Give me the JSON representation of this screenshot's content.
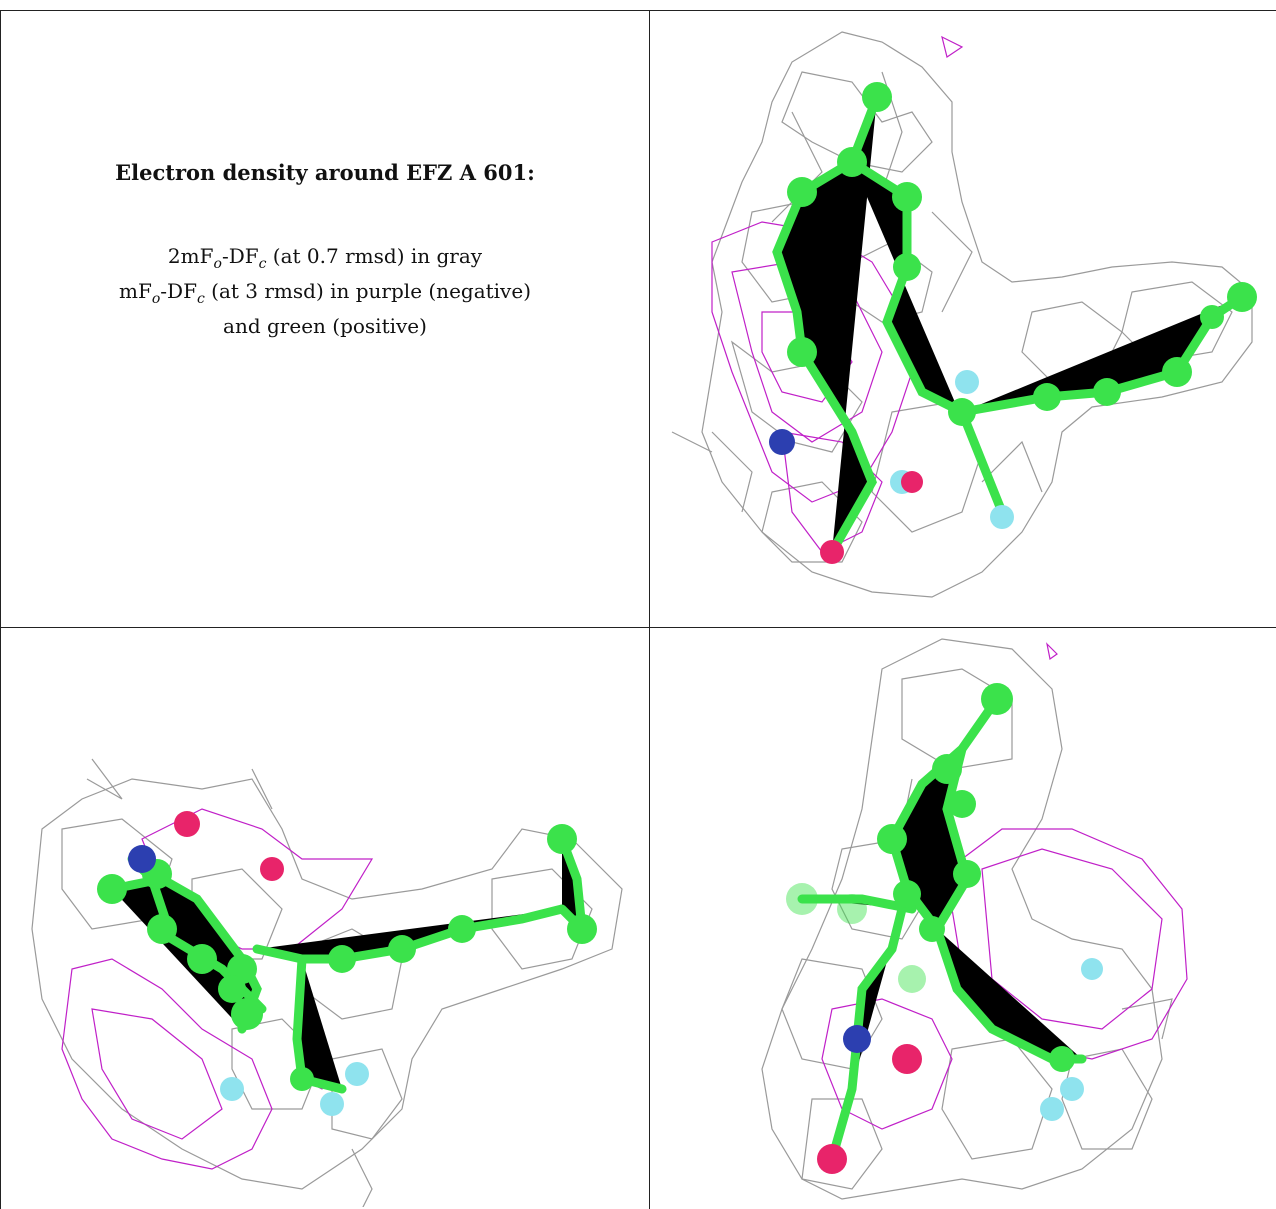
{
  "caption": {
    "title": "Electron density around EFZ A 601:",
    "line1_prefix": "2mF",
    "line1_sub_o": "o",
    "line1_mid": "-DF",
    "line1_sub_c": "c",
    "line1_suffix": " (at 0.7 rmsd) in gray",
    "line2_prefix": "mF",
    "line2_sub_o": "o",
    "line2_mid": "-DF",
    "line2_sub_c": "c",
    "line2_suffix": " (at 3 rmsd) in purple (negative)",
    "line3": "and green (positive)"
  },
  "colors": {
    "mesh_gray": "#9a9a9a",
    "mesh_purple": "#c020c8",
    "carbon": "#3be24b",
    "nitrogen": "#2c3fb0",
    "oxygen": "#e8246a",
    "fluorine": "#8fe3ee"
  }
}
